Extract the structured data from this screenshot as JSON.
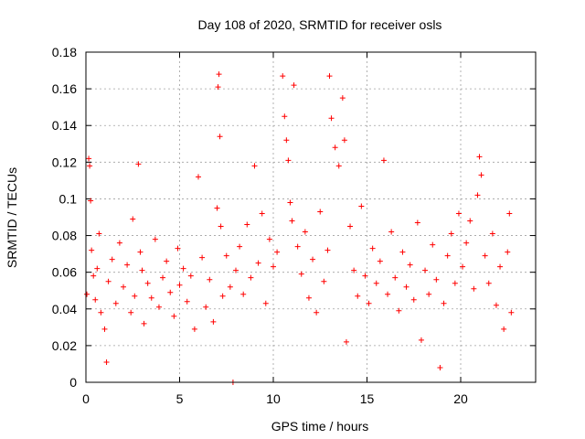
{
  "chart_data": {
    "type": "scatter",
    "title": "Day 108 of 2020, SRMTID for receiver osls",
    "xlabel": "GPS time / hours",
    "ylabel": "SRMTID / TECUs",
    "xlim": [
      0,
      24
    ],
    "ylim": [
      0,
      0.18
    ],
    "xticks": [
      0,
      5,
      10,
      15,
      20
    ],
    "xtick_labels": [
      "0",
      "5",
      "10",
      "15",
      "20"
    ],
    "yticks": [
      0,
      0.02,
      0.04,
      0.06,
      0.08,
      0.1,
      0.12,
      0.14,
      0.16,
      0.18
    ],
    "ytick_labels": [
      "0",
      "0.02",
      "0.04",
      "0.06",
      "0.08",
      "0.1",
      "0.12",
      "0.14",
      "0.16",
      "0.18"
    ],
    "grid": true,
    "marker": "plus",
    "color": "#ff0000",
    "series": [
      {
        "x": [
          0.05,
          0.15,
          0.2,
          0.25,
          0.3,
          0.4,
          0.5,
          0.6,
          0.7,
          0.8,
          1.0,
          1.1,
          1.2,
          1.4,
          1.6,
          1.8,
          2.0,
          2.2,
          2.4,
          2.5,
          2.6,
          2.8,
          2.9,
          3.0,
          3.1,
          3.3,
          3.5,
          3.7,
          3.9,
          4.1,
          4.3,
          4.5,
          4.7,
          4.9,
          5.0,
          5.2,
          5.4,
          5.6,
          5.8,
          6.0,
          6.2,
          6.4,
          6.6,
          6.8,
          7.0,
          7.05,
          7.1,
          7.15,
          7.2,
          7.3,
          7.5,
          7.7,
          7.85,
          8.0,
          8.2,
          8.4,
          8.6,
          8.8,
          9.0,
          9.2,
          9.4,
          9.6,
          9.8,
          10.0,
          10.2,
          10.5,
          10.6,
          10.7,
          10.8,
          10.9,
          11.0,
          11.1,
          11.3,
          11.5,
          11.7,
          11.9,
          12.1,
          12.3,
          12.5,
          12.7,
          12.9,
          13.0,
          13.1,
          13.3,
          13.5,
          13.7,
          13.8,
          13.9,
          14.1,
          14.3,
          14.5,
          14.7,
          14.9,
          15.1,
          15.3,
          15.5,
          15.7,
          15.9,
          16.1,
          16.3,
          16.5,
          16.7,
          16.9,
          17.1,
          17.3,
          17.5,
          17.7,
          17.9,
          18.1,
          18.3,
          18.5,
          18.7,
          18.9,
          19.1,
          19.3,
          19.5,
          19.7,
          19.9,
          20.1,
          20.3,
          20.5,
          20.7,
          20.9,
          21.0,
          21.1,
          21.3,
          21.5,
          21.7,
          21.9,
          22.1,
          22.3,
          22.5,
          22.6,
          22.7
        ],
        "y": [
          0.048,
          0.122,
          0.118,
          0.099,
          0.072,
          0.058,
          0.045,
          0.062,
          0.081,
          0.038,
          0.029,
          0.011,
          0.055,
          0.067,
          0.043,
          0.076,
          0.052,
          0.064,
          0.038,
          0.089,
          0.047,
          0.119,
          0.071,
          0.061,
          0.032,
          0.054,
          0.046,
          0.078,
          0.041,
          0.057,
          0.066,
          0.049,
          0.036,
          0.073,
          0.053,
          0.062,
          0.044,
          0.058,
          0.029,
          0.112,
          0.068,
          0.041,
          0.056,
          0.033,
          0.095,
          0.161,
          0.168,
          0.134,
          0.085,
          0.047,
          0.069,
          0.052,
          0.0,
          0.061,
          0.074,
          0.048,
          0.086,
          0.057,
          0.118,
          0.065,
          0.092,
          0.043,
          0.078,
          0.063,
          0.071,
          0.167,
          0.145,
          0.132,
          0.121,
          0.098,
          0.088,
          0.162,
          0.074,
          0.059,
          0.082,
          0.046,
          0.067,
          0.038,
          0.093,
          0.055,
          0.072,
          0.167,
          0.144,
          0.128,
          0.118,
          0.155,
          0.132,
          0.022,
          0.085,
          0.061,
          0.047,
          0.096,
          0.058,
          0.043,
          0.073,
          0.054,
          0.066,
          0.121,
          0.048,
          0.082,
          0.057,
          0.039,
          0.071,
          0.052,
          0.064,
          0.045,
          0.087,
          0.023,
          0.061,
          0.048,
          0.075,
          0.056,
          0.008,
          0.043,
          0.069,
          0.081,
          0.054,
          0.092,
          0.063,
          0.076,
          0.088,
          0.051,
          0.102,
          0.123,
          0.113,
          0.069,
          0.054,
          0.081,
          0.042,
          0.063,
          0.029,
          0.071,
          0.092,
          0.038
        ]
      }
    ]
  }
}
